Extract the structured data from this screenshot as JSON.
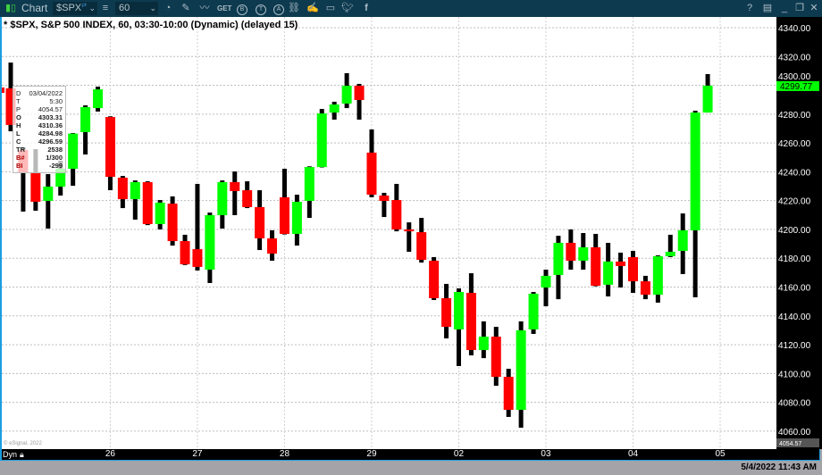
{
  "toolbar": {
    "app_label": "Chart",
    "symbol_value": "$SPX",
    "interval_value": "60",
    "icons_left": [
      "app-bars-icon",
      "link-icon",
      "chevron-down-icon",
      "menu-icon",
      "chevron-down-icon",
      "clock-icon",
      "pencil-icon",
      "wave-icon",
      "get-icon",
      "b-circle-icon",
      "t-circle-icon",
      "a-circle-icon",
      "link-chain-icon",
      "edit-note-icon",
      "comment-icon",
      "twitter-icon",
      "facebook-icon"
    ],
    "get_label": "GET",
    "b_label": "B",
    "t_label": "T",
    "a_label": "A",
    "help_label": "?",
    "icons_right": [
      "help-icon",
      "window-icon",
      "minimize-icon",
      "restore-icon",
      "close-icon"
    ]
  },
  "chart_title": "* $SPX, S&P 500 INDEX, 60, 03:30-10:00 (Dynamic) (delayed 15)",
  "databox": {
    "rows": [
      {
        "k": "D",
        "v": "03/04/2022",
        "bold": false
      },
      {
        "k": "T",
        "v": "5:30",
        "bold": false
      },
      {
        "k": "P",
        "v": "4054.57",
        "bold": false
      },
      {
        "k": "O",
        "v": "4303.31",
        "bold": true
      },
      {
        "k": "H",
        "v": "4310.36",
        "bold": true
      },
      {
        "k": "L",
        "v": "4284.98",
        "bold": true
      },
      {
        "k": "C",
        "v": "4296.59",
        "bold": true
      },
      {
        "k": "TR",
        "v": "2538",
        "bold": true
      },
      {
        "k": "B#",
        "v": "1/300",
        "bold": true
      },
      {
        "k": "BI",
        "v": "-299",
        "bold": true
      }
    ]
  },
  "copyright": "© eSignal, 2022",
  "time_axis": {
    "left_label": "Dyn",
    "lock_icon": "lock-icon"
  },
  "status_datetime": "5/4/2022 11:43 AM",
  "colors": {
    "up": "#00ff00",
    "down": "#ff0000",
    "wick": "#000000",
    "toolbar": "#0d3a4f",
    "last_price_bg": "#00ff00",
    "axis_bg": "#000000"
  },
  "chart_data": {
    "type": "candlestick",
    "title": "* $SPX, S&P 500 INDEX, 60, 03:30-10:00 (Dynamic) (delayed 15)",
    "ylim": [
      4054,
      4348
    ],
    "y_ticks": [
      4340,
      4320,
      4300,
      4280,
      4260,
      4240,
      4220,
      4200,
      4180,
      4160,
      4140,
      4120,
      4100,
      4080,
      4060
    ],
    "y_tick_labels": [
      "4340.00",
      "4320.00",
      "4300.00",
      "4280.00",
      "4260.00",
      "4240.00",
      "4220.00",
      "4200.00",
      "4180.00",
      "4160.00",
      "4140.00",
      "4120.00",
      "4100.00",
      "4080.00",
      "4060.00"
    ],
    "x_tick_labels": [
      {
        "label": "26",
        "bar": 8
      },
      {
        "label": "27",
        "bar": 15
      },
      {
        "label": "28",
        "bar": 22
      },
      {
        "label": "29",
        "bar": 29
      },
      {
        "label": "02",
        "bar": 36
      },
      {
        "label": "03",
        "bar": 43
      },
      {
        "label": "04",
        "bar": 50
      },
      {
        "label": "05",
        "bar": 57
      }
    ],
    "last_price": "4299.77",
    "price_marker": "4054.57",
    "grid": true,
    "ohlc": [
      [
        4297.9,
        4315.8,
        4268.1,
        4272.5
      ],
      [
        4255.1,
        4257.0,
        4212.4,
        4239.6
      ],
      [
        4239.0,
        4255.7,
        4213.0,
        4219.2
      ],
      [
        4219.8,
        4238.4,
        4200.6,
        4229.7
      ],
      [
        4229.7,
        4247.7,
        4223.5,
        4242.1
      ],
      [
        4242.1,
        4266.9,
        4230.3,
        4266.5
      ],
      [
        4267.5,
        4286.1,
        4252.0,
        4284.9
      ],
      [
        4284.2,
        4299.1,
        4281.8,
        4297.2
      ],
      [
        4278.0,
        4278.5,
        4227.2,
        4236.5
      ],
      [
        4235.9,
        4237.1,
        4214.8,
        4221.0
      ],
      [
        4221.0,
        4234.0,
        4206.8,
        4232.8
      ],
      [
        4232.8,
        4233.4,
        4203.0,
        4203.7
      ],
      [
        4203.7,
        4220.4,
        4200.0,
        4218.6
      ],
      [
        4217.9,
        4222.9,
        4188.8,
        4191.9
      ],
      [
        4191.9,
        4196.3,
        4175.3,
        4175.8
      ],
      [
        4186.3,
        4231.6,
        4171.5,
        4174.0
      ],
      [
        4172.1,
        4211.7,
        4162.8,
        4209.9
      ],
      [
        4209.9,
        4234.0,
        4200.6,
        4232.8
      ],
      [
        4232.8,
        4240.2,
        4209.9,
        4226.6
      ],
      [
        4227.2,
        4233.4,
        4214.8,
        4215.5
      ],
      [
        4215.5,
        4227.2,
        4185.7,
        4193.8
      ],
      [
        4193.8,
        4199.4,
        4178.3,
        4183.2
      ],
      [
        4222.3,
        4242.1,
        4196.5,
        4196.9
      ],
      [
        4196.9,
        4224.1,
        4188.8,
        4219.2
      ],
      [
        4219.8,
        4243.8,
        4208.0,
        4243.3
      ],
      [
        4243.3,
        4283.6,
        4243.0,
        4280.5
      ],
      [
        4281.1,
        4288.6,
        4276.2,
        4286.7
      ],
      [
        4287.3,
        4308.4,
        4284.2,
        4299.7
      ],
      [
        4299.7,
        4301.0,
        4276.2,
        4289.8
      ],
      [
        4253.3,
        4269.4,
        4222.3,
        4224.1
      ],
      [
        4223.5,
        4225.4,
        4208.6,
        4219.8
      ],
      [
        4220.4,
        4231.6,
        4198.7,
        4200.0
      ],
      [
        4200.0,
        4204.9,
        4184.5,
        4198.7
      ],
      [
        4198.1,
        4208.0,
        4177.0,
        4178.9
      ],
      [
        4178.3,
        4180.8,
        4151.0,
        4152.3
      ],
      [
        4152.3,
        4162.2,
        4124.4,
        4132.4
      ],
      [
        4130.6,
        4159.1,
        4105.2,
        4156.6
      ],
      [
        4156.0,
        4169.6,
        4112.6,
        4116.3
      ],
      [
        4116.3,
        4136.2,
        4110.7,
        4125.6
      ],
      [
        4125.6,
        4132.4,
        4091.5,
        4097.7
      ],
      [
        4097.7,
        4103.3,
        4069.9,
        4074.8
      ],
      [
        4074.8,
        4136.2,
        4062.4,
        4130.0
      ],
      [
        4130.6,
        4156.6,
        4127.5,
        4155.4
      ],
      [
        4159.7,
        4172.1,
        4146.7,
        4167.8
      ],
      [
        4168.4,
        4195.6,
        4151.6,
        4190.7
      ],
      [
        4190.7,
        4200.0,
        4172.1,
        4178.3
      ],
      [
        4178.3,
        4197.5,
        4172.1,
        4187.6
      ],
      [
        4187.6,
        4196.9,
        4160.5,
        4160.9
      ],
      [
        4161.6,
        4190.7,
        4153.5,
        4177.7
      ],
      [
        4177.7,
        4183.9,
        4159.7,
        4174.6
      ],
      [
        4180.8,
        4185.1,
        4156.0,
        4164.0
      ],
      [
        4164.0,
        4167.8,
        4151.6,
        4154.7
      ],
      [
        4154.7,
        4182.0,
        4149.2,
        4181.4
      ],
      [
        4181.4,
        4196.3,
        4180.8,
        4184.5
      ],
      [
        4185.1,
        4211.1,
        4169.0,
        4199.4
      ],
      [
        4199.4,
        4282.4,
        4152.9,
        4281.1
      ],
      [
        4281.1,
        4307.8,
        4281.1,
        4299.77
      ]
    ]
  }
}
